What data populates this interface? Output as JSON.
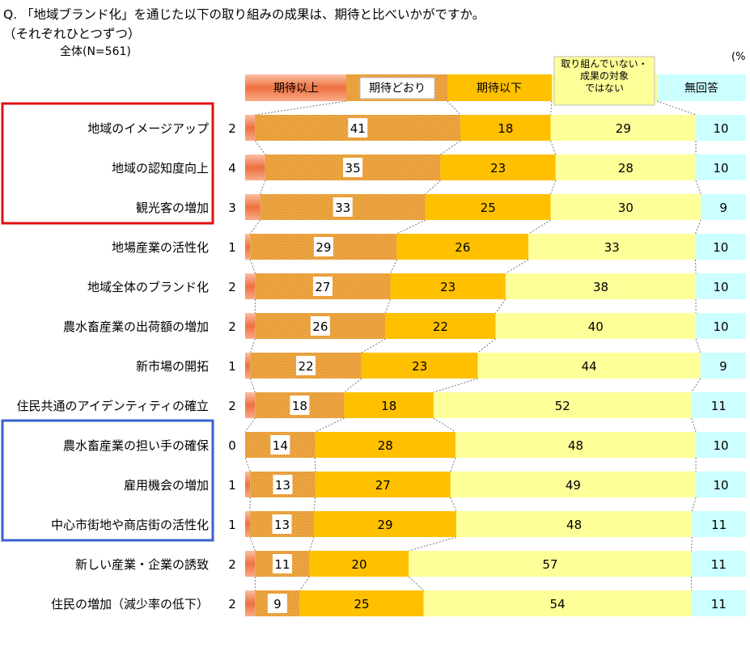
{
  "title": "Q. 「地域ブランド化」を通じた以下の取り組みの成果は、期待と比べいかがですか。",
  "subtitle": "（それぞれひとつずつ）",
  "base_label": "全体(N=561)",
  "unit_label": "(%",
  "colors": {
    "exceeded": "#f4845a",
    "as_expected": "#e9a63f",
    "below": "#ffc000",
    "not_working": "#ffff99",
    "no_answer": "#ccffff",
    "highlight_red": "#e01010",
    "highlight_blue": "#3a60d0"
  },
  "chart_data": {
    "type": "bar",
    "orientation": "horizontal",
    "stacked": true,
    "unit": "%",
    "categories": [
      "地域のイメージアップ",
      "地域の認知度向上",
      "観光客の増加",
      "地場産業の活性化",
      "地域全体のブランド化",
      "農水畜産業の出荷額の増加",
      "新市場の開拓",
      "住民共通のアイデンティティの確立",
      "農水畜産業の担い手の確保",
      "雇用機会の増加",
      "中心市街地や商店街の活性化",
      "新しい産業・企業の誘致",
      "住民の増加（減少率の低下）"
    ],
    "series": [
      {
        "name": "期待以上",
        "values": [
          2,
          4,
          3,
          1,
          2,
          2,
          1,
          2,
          0,
          1,
          1,
          2,
          2
        ]
      },
      {
        "name": "期待どおり",
        "values": [
          41,
          35,
          33,
          29,
          27,
          26,
          22,
          18,
          14,
          13,
          13,
          11,
          9
        ]
      },
      {
        "name": "期待以下",
        "values": [
          18,
          23,
          25,
          26,
          23,
          22,
          23,
          18,
          28,
          27,
          29,
          20,
          25
        ]
      },
      {
        "name": "取り組んでいない・成果の対象ではない",
        "values": [
          29,
          28,
          30,
          33,
          38,
          40,
          44,
          52,
          48,
          49,
          48,
          57,
          54
        ]
      },
      {
        "name": "無回答",
        "values": [
          10,
          10,
          9,
          10,
          10,
          10,
          9,
          11,
          10,
          10,
          11,
          11,
          11
        ]
      }
    ],
    "legend_position": "top",
    "grid": false,
    "highlight_groups": [
      {
        "color": "red",
        "rows": [
          0,
          1,
          2
        ]
      },
      {
        "color": "blue",
        "rows": [
          8,
          9,
          10
        ]
      }
    ]
  }
}
